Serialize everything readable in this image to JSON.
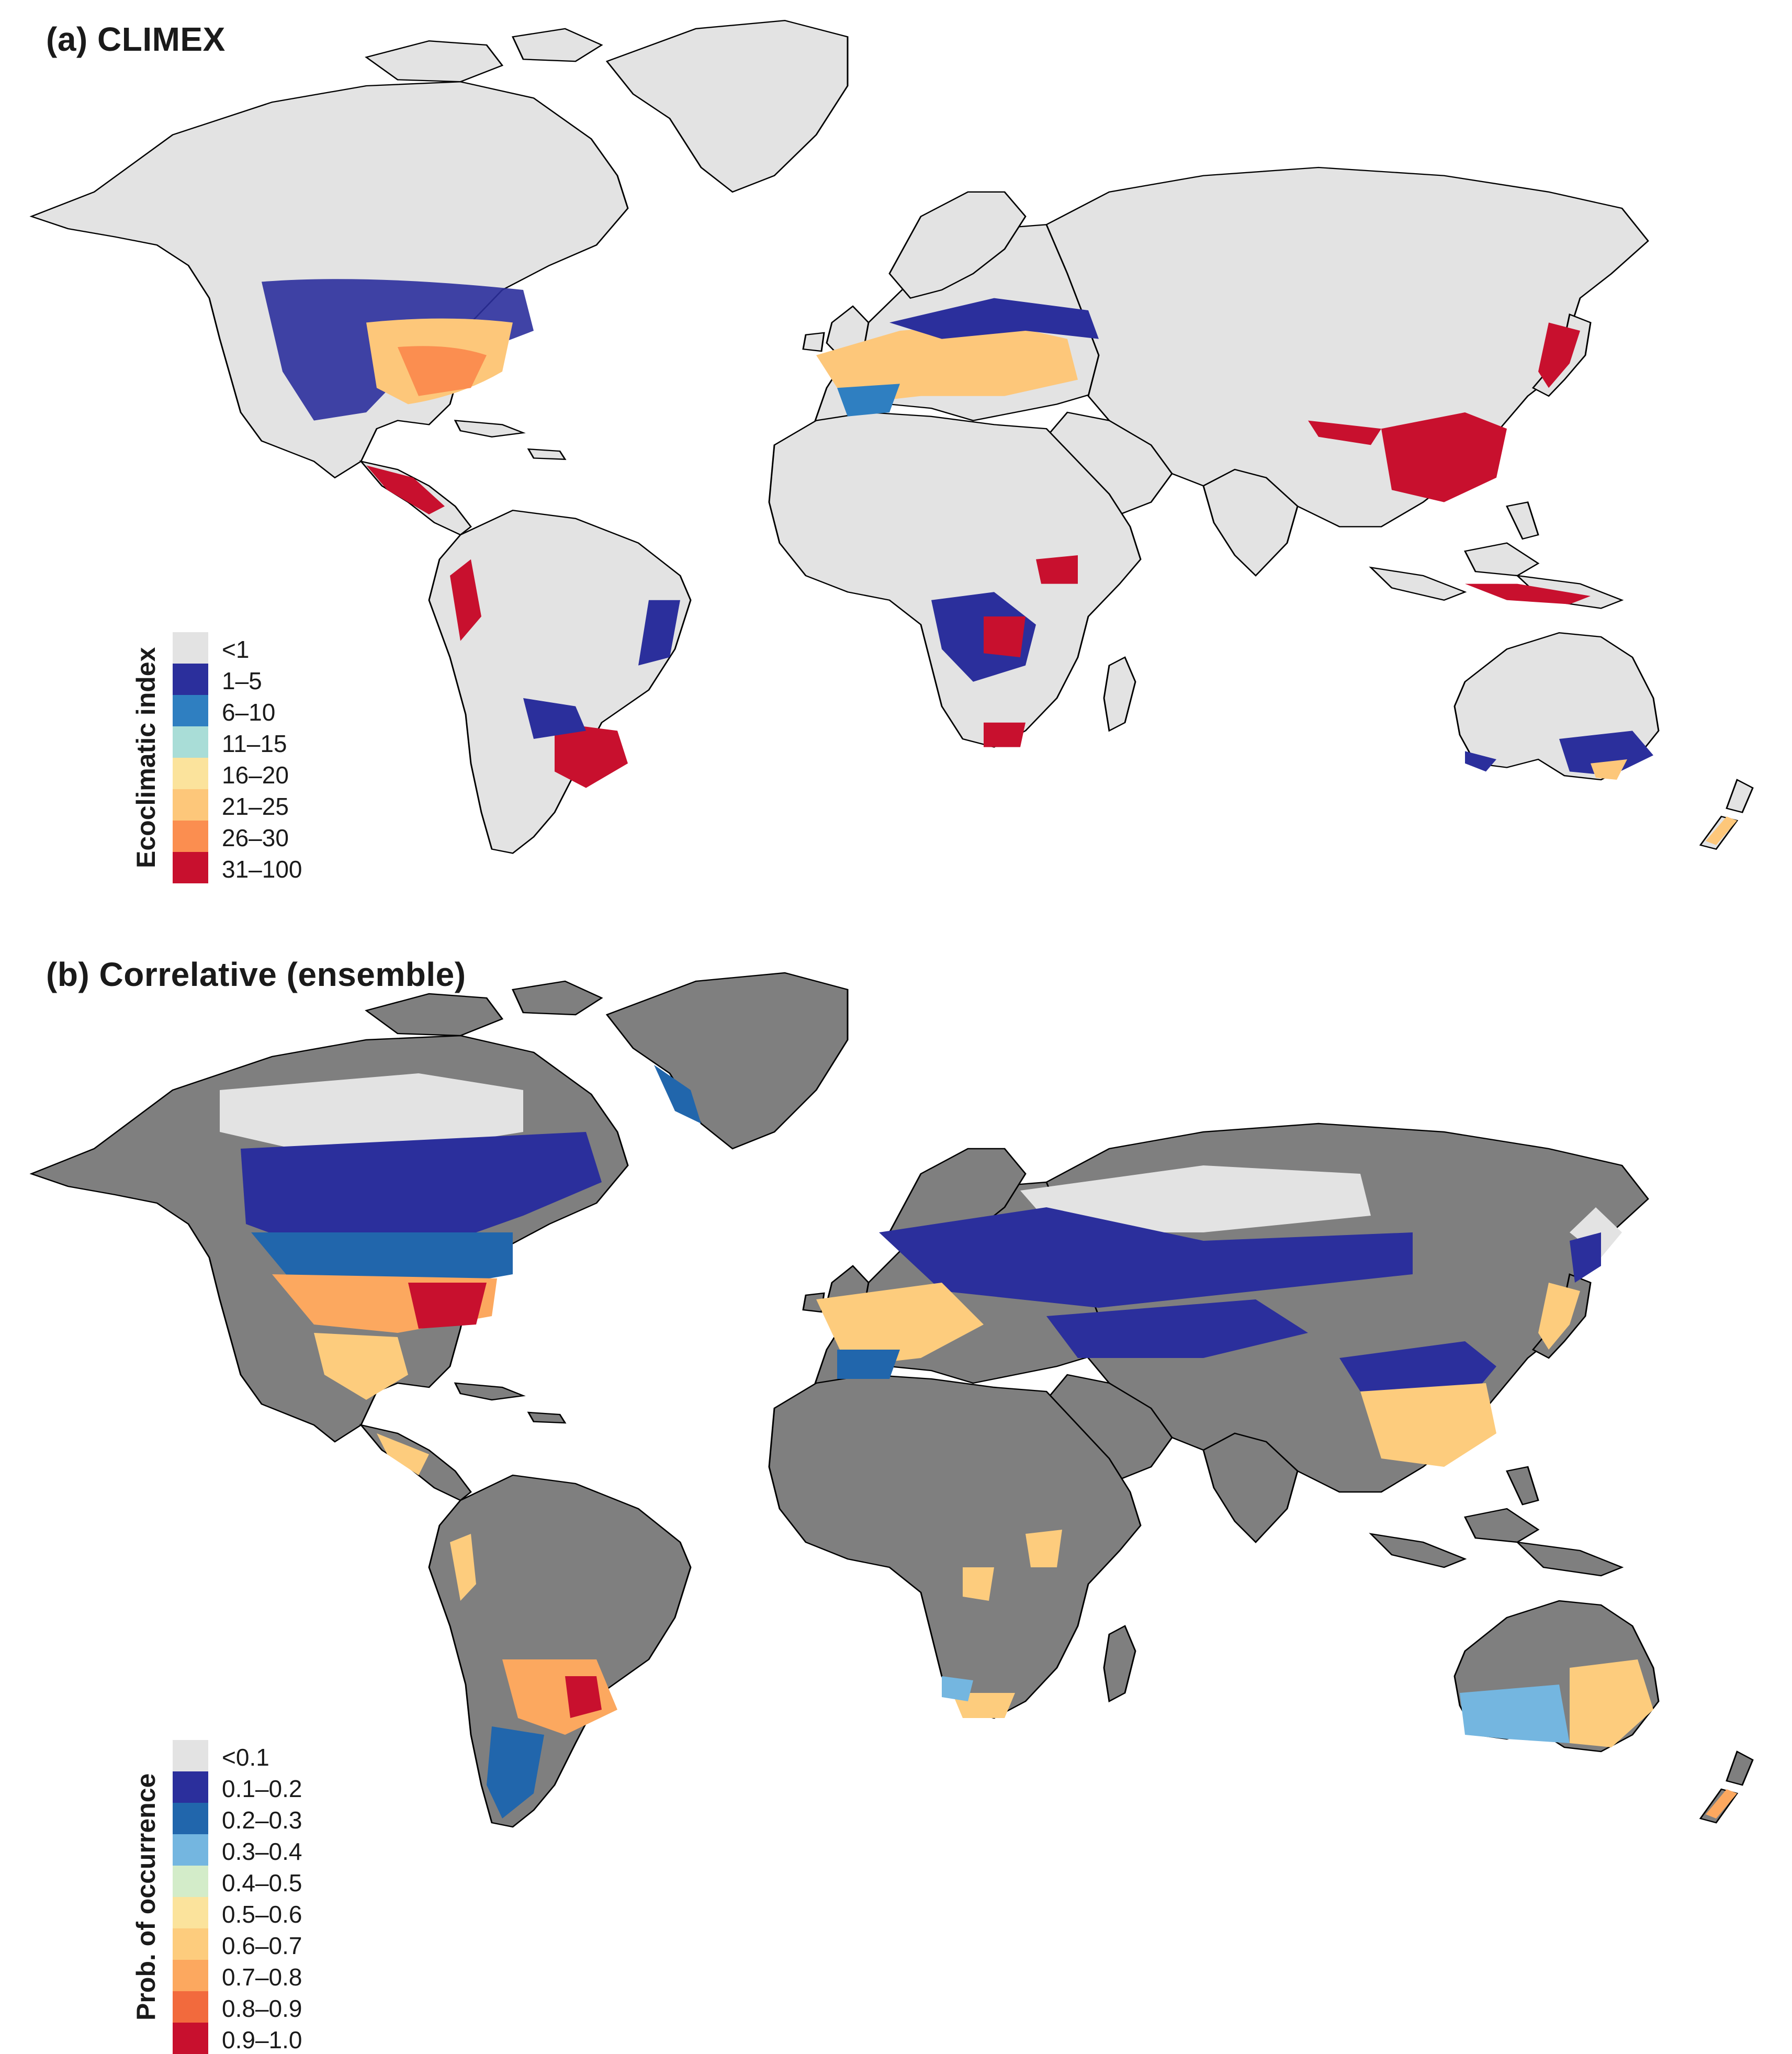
{
  "colors": {
    "ocean": "#ffffff",
    "coastline": "#000000",
    "border": "#3a3a3a",
    "unsuitable_b": "#7f7f7f",
    "low_a": "#e3e3e3"
  },
  "panels": [
    {
      "title": "(a) CLIMEX",
      "legend": {
        "title": "Ecoclimatic index",
        "items": [
          {
            "label": "<1",
            "color": "#e3e3e3"
          },
          {
            "label": "1–5",
            "color": "#2b2f9c"
          },
          {
            "label": "6–10",
            "color": "#2f7fc1"
          },
          {
            "label": "11–15",
            "color": "#a9ddd7"
          },
          {
            "label": "16–20",
            "color": "#fbe39c"
          },
          {
            "label": "21–25",
            "color": "#fdc77a"
          },
          {
            "label": "26–30",
            "color": "#fb8e50"
          },
          {
            "label": "31–100",
            "color": "#c8102e"
          }
        ]
      }
    },
    {
      "title": "(b) Correlative (ensemble)",
      "legend": {
        "title": "Prob. of occurrence",
        "items": [
          {
            "label": "<0.1",
            "color": "#e3e3e3"
          },
          {
            "label": "0.1–0.2",
            "color": "#2b2f9c"
          },
          {
            "label": "0.2–0.3",
            "color": "#2166ac"
          },
          {
            "label": "0.3–0.4",
            "color": "#74b6e0"
          },
          {
            "label": "0.4–0.5",
            "color": "#d3ecc9"
          },
          {
            "label": "0.5–0.6",
            "color": "#fbe39c"
          },
          {
            "label": "0.6–0.7",
            "color": "#fdcc7d"
          },
          {
            "label": "0.7–0.8",
            "color": "#fca85f"
          },
          {
            "label": "0.8–0.9",
            "color": "#f26a3d"
          },
          {
            "label": "0.9–1.0",
            "color": "#c8102e"
          }
        ]
      }
    }
  ]
}
